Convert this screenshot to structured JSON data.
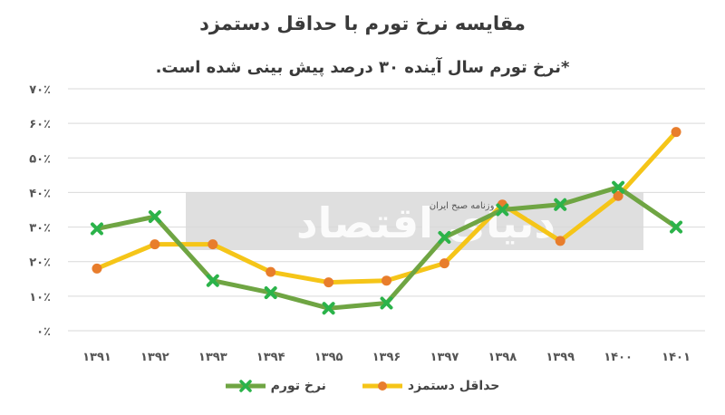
{
  "chart_data": {
    "type": "line",
    "title": "مقایسه نرخ تورم با حداقل دستمزد",
    "subtitle": "*نرخ تورم سال آینده ۳۰ درصد پیش بینی شده است.",
    "categories": [
      "۱۳۹۱",
      "۱۳۹۲",
      "۱۳۹۳",
      "۱۳۹۴",
      "۱۳۹۵",
      "۱۳۹۶",
      "۱۳۹۷",
      "۱۳۹۸",
      "۱۳۹۹",
      "۱۴۰۰",
      "۱۴۰۱"
    ],
    "ylim": [
      0,
      70
    ],
    "yticks": [
      0,
      10,
      20,
      30,
      40,
      50,
      60,
      70
    ],
    "ytick_labels": [
      "۰٪",
      "۱۰٪",
      "۲۰٪",
      "۳۰٪",
      "۴۰٪",
      "۵۰٪",
      "۶۰٪",
      "۷۰٪"
    ],
    "grid": true,
    "legend_position": "bottom",
    "series": [
      {
        "name": "حداقل دستمزد",
        "color": "#F5C518",
        "marker_color": "#E87D2C",
        "marker": "circle",
        "values": [
          18,
          25,
          25,
          17,
          14,
          14.5,
          19.5,
          36.5,
          26,
          39,
          57.5
        ]
      },
      {
        "name": "نرخ تورم",
        "color": "#6FA543",
        "marker_color": "#2BB34A",
        "marker": "x",
        "values": [
          29.5,
          33,
          14.5,
          11,
          6.5,
          8,
          27,
          35,
          36.5,
          41.5,
          30
        ]
      }
    ]
  },
  "watermark": {
    "text": "دنیای اقتصاد",
    "small_text": "روزنامه صبح ایران"
  }
}
